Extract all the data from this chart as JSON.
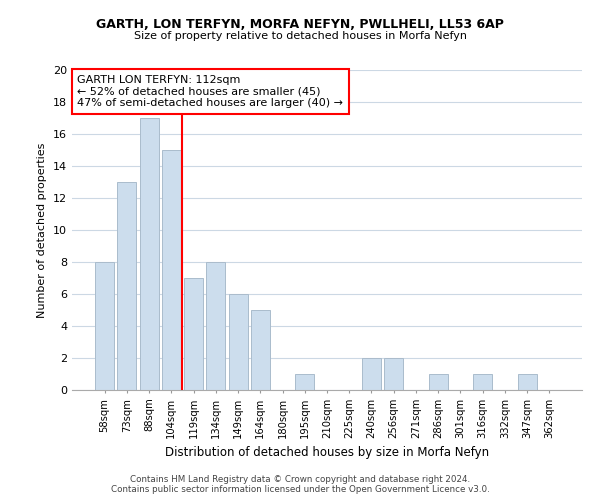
{
  "title": "GARTH, LON TERFYN, MORFA NEFYN, PWLLHELI, LL53 6AP",
  "subtitle": "Size of property relative to detached houses in Morfa Nefyn",
  "xlabel": "Distribution of detached houses by size in Morfa Nefyn",
  "ylabel": "Number of detached properties",
  "categories": [
    "58sqm",
    "73sqm",
    "88sqm",
    "104sqm",
    "119sqm",
    "134sqm",
    "149sqm",
    "164sqm",
    "180sqm",
    "195sqm",
    "210sqm",
    "225sqm",
    "240sqm",
    "256sqm",
    "271sqm",
    "286sqm",
    "301sqm",
    "316sqm",
    "332sqm",
    "347sqm",
    "362sqm"
  ],
  "values": [
    8,
    13,
    17,
    15,
    7,
    8,
    6,
    5,
    0,
    1,
    0,
    0,
    2,
    2,
    0,
    1,
    0,
    1,
    0,
    1,
    0
  ],
  "bar_color": "#ccdded",
  "bar_edge_color": "#aabccc",
  "redline_x": 3.5,
  "redline_label": "GARTH LON TERFYN: 112sqm",
  "annotation_line1": "← 52% of detached houses are smaller (45)",
  "annotation_line2": "47% of semi-detached houses are larger (40) →",
  "ylim": [
    0,
    20
  ],
  "yticks": [
    0,
    2,
    4,
    6,
    8,
    10,
    12,
    14,
    16,
    18,
    20
  ],
  "footnote1": "Contains HM Land Registry data © Crown copyright and database right 2024.",
  "footnote2": "Contains public sector information licensed under the Open Government Licence v3.0.",
  "background_color": "#ffffff",
  "grid_color": "#ccd8e4"
}
